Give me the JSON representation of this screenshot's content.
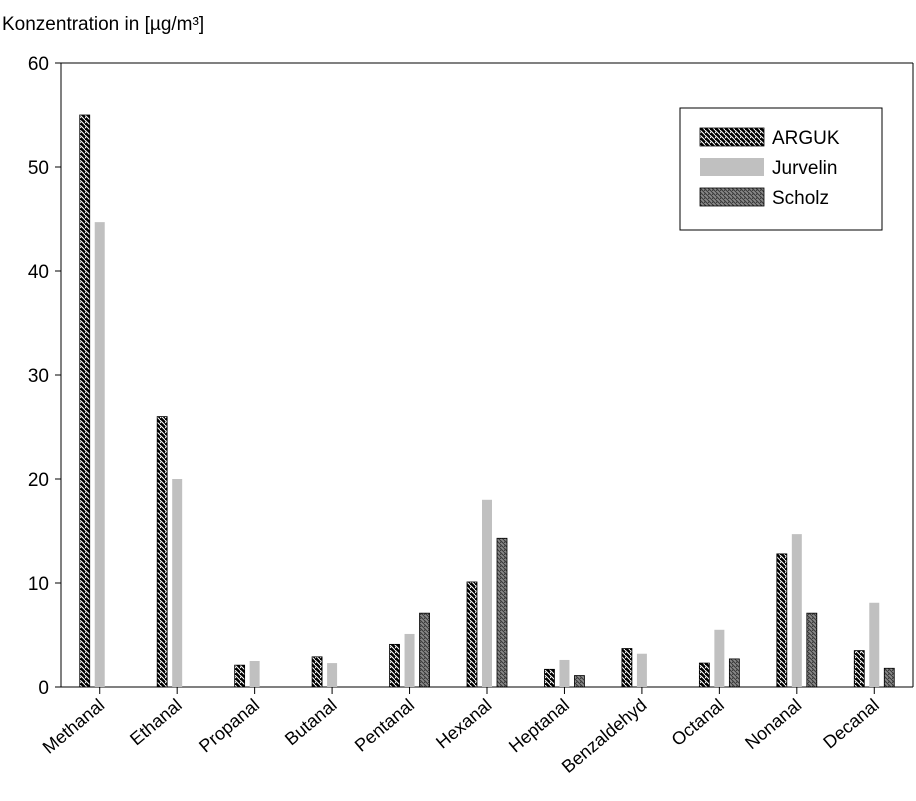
{
  "chart_data": {
    "type": "bar",
    "title": "",
    "ylabel": "Konzentration in [µg/m³]",
    "xlabel": "",
    "ylim": [
      0,
      60
    ],
    "yticks": [
      0,
      10,
      20,
      30,
      40,
      50,
      60
    ],
    "grid": false,
    "legend_position": "top-right",
    "categories": [
      "Methanal",
      "Ethanal",
      "Propanal",
      "Butanal",
      "Pentanal",
      "Hexanal",
      "Heptanal",
      "Benzaldehyd",
      "Octanal",
      "Nonanal",
      "Decanal"
    ],
    "series": [
      {
        "name": "ARGUK",
        "pattern": "dense-hatch",
        "color": "#000000",
        "values": [
          55,
          26,
          2.1,
          2.9,
          4.1,
          10.1,
          1.7,
          3.7,
          2.3,
          12.8,
          3.5
        ]
      },
      {
        "name": "Jurvelin",
        "pattern": "solid",
        "color": "#c0c0c0",
        "values": [
          44.7,
          20,
          2.5,
          2.3,
          5.1,
          18,
          2.6,
          3.2,
          5.5,
          14.7,
          8.1
        ]
      },
      {
        "name": "Scholz",
        "pattern": "hatch",
        "color": "#808080",
        "values": [
          null,
          null,
          null,
          null,
          7.1,
          14.3,
          1.1,
          null,
          2.7,
          7.1,
          1.8
        ]
      }
    ]
  }
}
